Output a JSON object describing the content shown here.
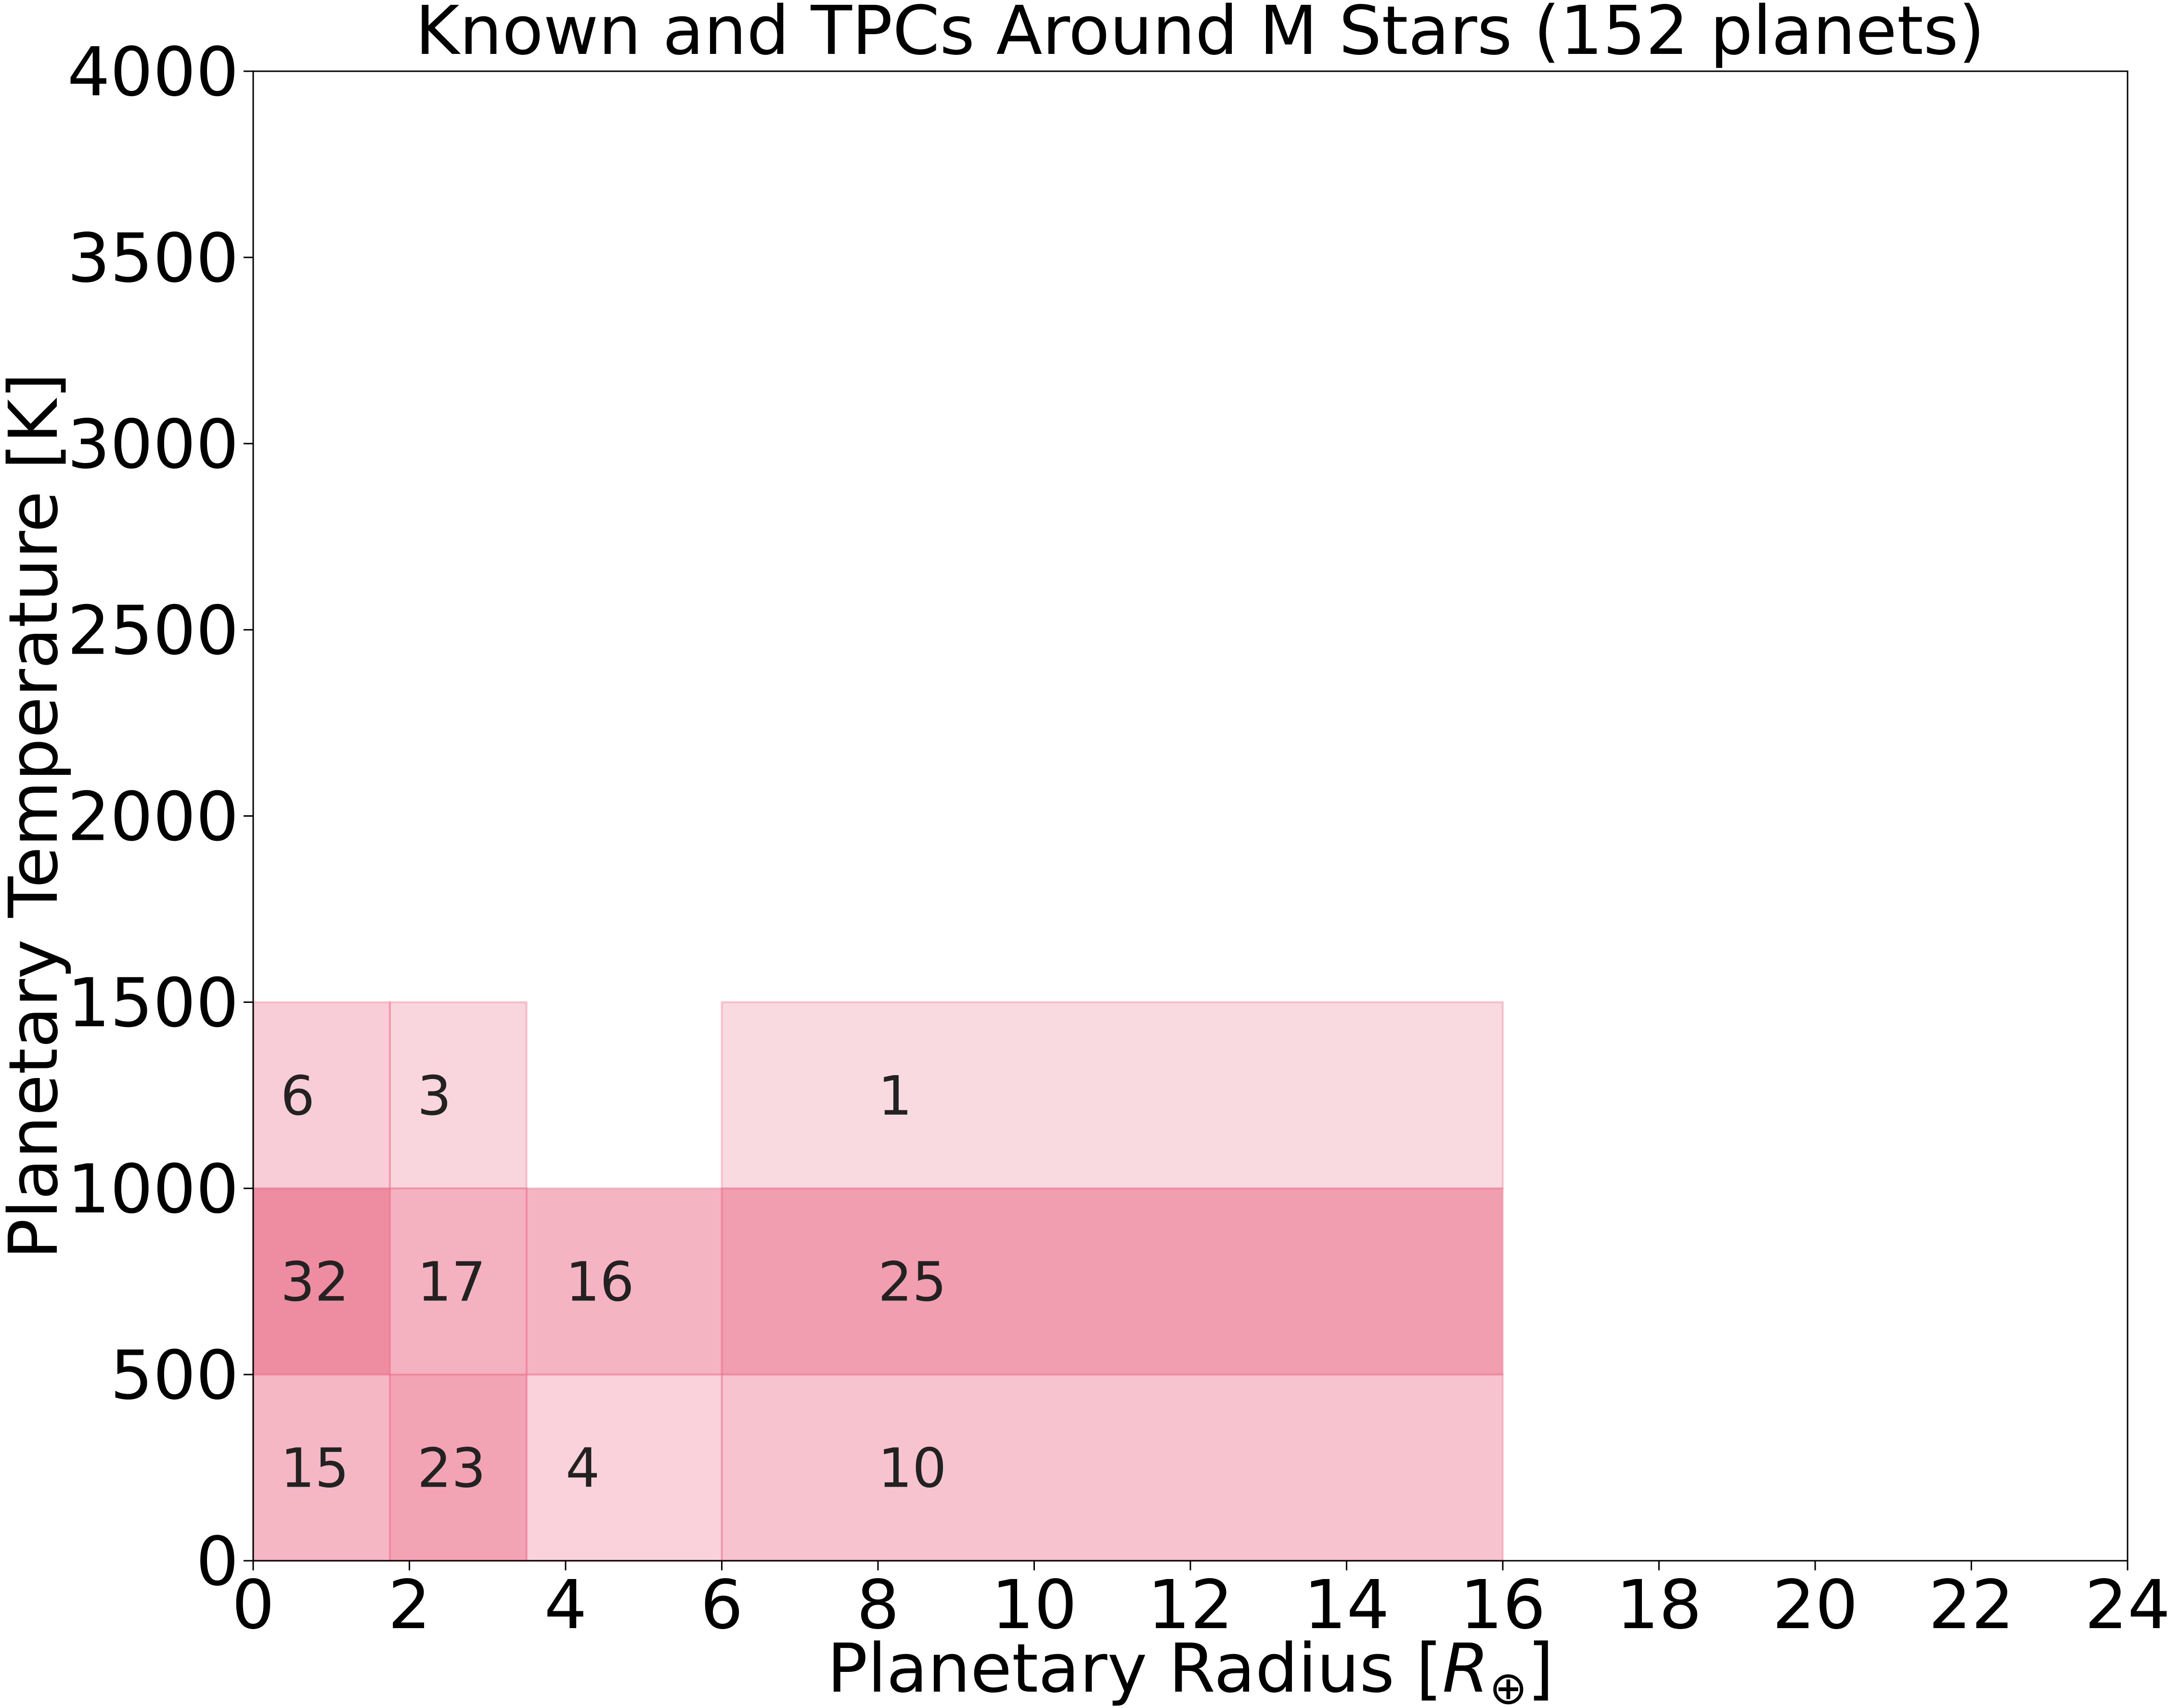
{
  "chart_data": {
    "type": "heatmap",
    "title": "Known and TPCs Around M Stars (152 planets)",
    "xlabel": "Planetary Radius [R⊕]",
    "ylabel": "Planetary Temperature [K]",
    "xlim": [
      0,
      24
    ],
    "ylim": [
      0,
      4000
    ],
    "xticks": [
      "0",
      "2",
      "4",
      "6",
      "8",
      "10",
      "12",
      "14",
      "16",
      "18",
      "20",
      "22",
      "24"
    ],
    "yticks": [
      "0",
      "500",
      "1000",
      "1500",
      "2000",
      "2500",
      "3000",
      "3500",
      "4000"
    ],
    "grid": false,
    "colors": {
      "cell": "#e8607e",
      "edge": "#f07090"
    },
    "cells": [
      {
        "x0": 0,
        "x1": 1.75,
        "y0": 1000,
        "y1": 1500,
        "count": 6
      },
      {
        "x0": 1.75,
        "x1": 3.5,
        "y0": 1000,
        "y1": 1500,
        "count": 3
      },
      {
        "x0": 6,
        "x1": 16,
        "y0": 1000,
        "y1": 1500,
        "count": 1
      },
      {
        "x0": 0,
        "x1": 1.75,
        "y0": 500,
        "y1": 1000,
        "count": 32
      },
      {
        "x0": 1.75,
        "x1": 3.5,
        "y0": 500,
        "y1": 1000,
        "count": 17
      },
      {
        "x0": 3.5,
        "x1": 6,
        "y0": 500,
        "y1": 1000,
        "count": 16
      },
      {
        "x0": 6,
        "x1": 16,
        "y0": 500,
        "y1": 1000,
        "count": 25
      },
      {
        "x0": 0,
        "x1": 1.75,
        "y0": 0,
        "y1": 500,
        "count": 15
      },
      {
        "x0": 1.75,
        "x1": 3.5,
        "y0": 0,
        "y1": 500,
        "count": 23
      },
      {
        "x0": 3.5,
        "x1": 6,
        "y0": 0,
        "y1": 500,
        "count": 4
      },
      {
        "x0": 6,
        "x1": 16,
        "y0": 0,
        "y1": 500,
        "count": 10
      }
    ]
  }
}
